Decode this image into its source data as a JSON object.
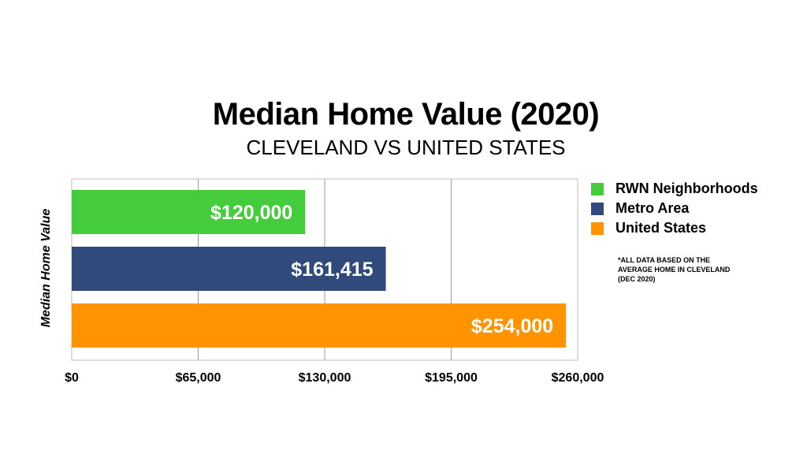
{
  "chart_data": {
    "type": "bar",
    "orientation": "horizontal",
    "title": "Median Home Value (2020)",
    "subtitle": "CLEVELAND VS UNITED STATES",
    "xlabel": "",
    "ylabel": "Median Home Value",
    "xlim": [
      0,
      260000
    ],
    "ticks": [
      0,
      65000,
      130000,
      195000,
      260000
    ],
    "tick_labels": [
      "$0",
      "$65,000",
      "$130,000",
      "$195,000",
      "$260,000"
    ],
    "grid": true,
    "legend_position": "right",
    "series": [
      {
        "name": "RWN Neighborhoods",
        "value": 120000,
        "label": "$120,000",
        "color": "#44cc3c"
      },
      {
        "name": "Metro Area",
        "value": 161415,
        "label": "$161,415",
        "color": "#314a7c"
      },
      {
        "name": "United States",
        "value": 254000,
        "label": "$254,000",
        "color": "#ff9300"
      }
    ]
  },
  "note_lines": [
    "*ALL DATA BASED ON THE",
    "AVERAGE HOME IN CLEVELAND",
    "(DEC 2020)"
  ]
}
